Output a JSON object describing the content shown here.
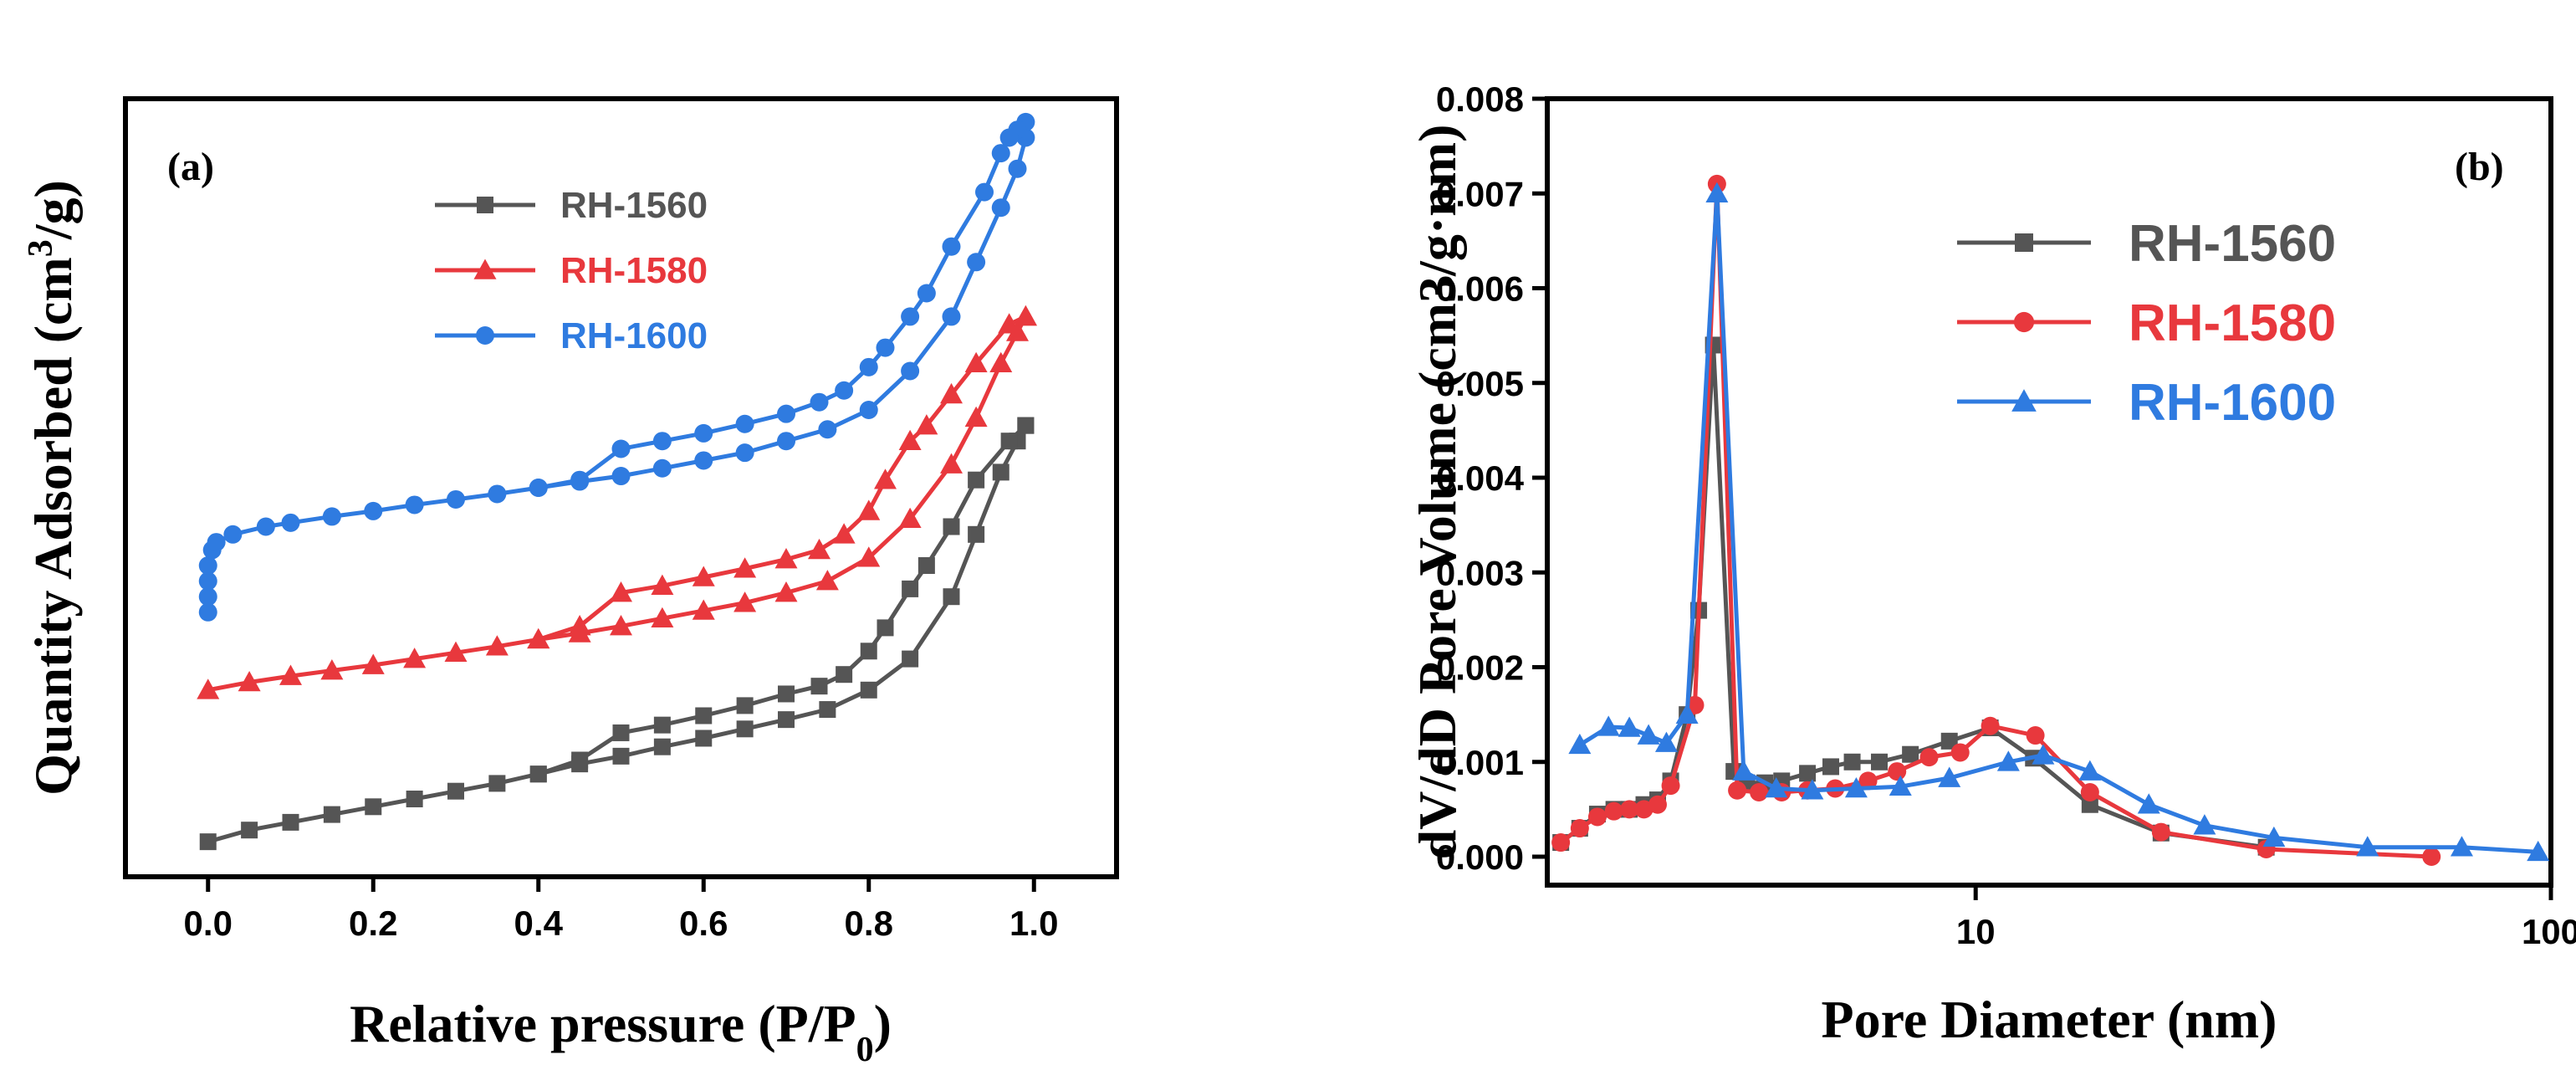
{
  "chart_data": [
    {
      "type": "line",
      "panel_label": "(a)",
      "xlabel": "Relative pressure (P/P",
      "xlabel_sub": "0",
      "xlabel_end": ")",
      "ylabel": "Quantity Adsorbed (cm",
      "ylabel_sup": "3",
      "ylabel_end": "/g)",
      "xlim": [
        -0.1,
        1.1
      ],
      "ylim": [
        0,
        1
      ],
      "xticks": [
        0.0,
        0.2,
        0.4,
        0.6,
        0.8,
        1.0
      ],
      "xtick_labels": [
        "0.0",
        "0.2",
        "0.4",
        "0.6",
        "0.8",
        "1.0"
      ],
      "yticks_shown": false,
      "legend_position": "top-center",
      "series": [
        {
          "name": "RH-1560",
          "color": "#555555",
          "marker": "square",
          "adsorption": [
            [
              0.0,
              0.045
            ],
            [
              0.05,
              0.06
            ],
            [
              0.1,
              0.07
            ],
            [
              0.15,
              0.08
            ],
            [
              0.2,
              0.09
            ],
            [
              0.25,
              0.1
            ],
            [
              0.3,
              0.11
            ],
            [
              0.35,
              0.12
            ],
            [
              0.4,
              0.132
            ],
            [
              0.45,
              0.145
            ],
            [
              0.5,
              0.155
            ],
            [
              0.55,
              0.167
            ],
            [
              0.6,
              0.178
            ],
            [
              0.65,
              0.19
            ],
            [
              0.7,
              0.202
            ],
            [
              0.75,
              0.215
            ],
            [
              0.8,
              0.24
            ],
            [
              0.85,
              0.28
            ],
            [
              0.9,
              0.36
            ],
            [
              0.93,
              0.44
            ],
            [
              0.96,
              0.52
            ],
            [
              0.98,
              0.56
            ],
            [
              0.99,
              0.58
            ]
          ],
          "desorption": [
            [
              0.99,
              0.58
            ],
            [
              0.97,
              0.56
            ],
            [
              0.93,
              0.51
            ],
            [
              0.9,
              0.45
            ],
            [
              0.87,
              0.4
            ],
            [
              0.85,
              0.37
            ],
            [
              0.82,
              0.32
            ],
            [
              0.8,
              0.29
            ],
            [
              0.77,
              0.26
            ],
            [
              0.74,
              0.245
            ],
            [
              0.7,
              0.235
            ],
            [
              0.65,
              0.22
            ],
            [
              0.6,
              0.207
            ],
            [
              0.55,
              0.195
            ],
            [
              0.5,
              0.185
            ],
            [
              0.45,
              0.15
            ],
            [
              0.4,
              0.132
            ]
          ]
        },
        {
          "name": "RH-1580",
          "color": "#e8383d",
          "marker": "triangle",
          "adsorption": [
            [
              0.0,
              0.24
            ],
            [
              0.05,
              0.25
            ],
            [
              0.1,
              0.258
            ],
            [
              0.15,
              0.265
            ],
            [
              0.2,
              0.272
            ],
            [
              0.25,
              0.28
            ],
            [
              0.3,
              0.288
            ],
            [
              0.35,
              0.296
            ],
            [
              0.4,
              0.305
            ],
            [
              0.45,
              0.313
            ],
            [
              0.5,
              0.322
            ],
            [
              0.55,
              0.332
            ],
            [
              0.6,
              0.342
            ],
            [
              0.65,
              0.352
            ],
            [
              0.7,
              0.365
            ],
            [
              0.75,
              0.38
            ],
            [
              0.8,
              0.41
            ],
            [
              0.85,
              0.46
            ],
            [
              0.9,
              0.53
            ],
            [
              0.93,
              0.59
            ],
            [
              0.96,
              0.66
            ],
            [
              0.98,
              0.7
            ],
            [
              0.99,
              0.72
            ]
          ],
          "desorption": [
            [
              0.99,
              0.72
            ],
            [
              0.97,
              0.71
            ],
            [
              0.93,
              0.66
            ],
            [
              0.9,
              0.62
            ],
            [
              0.87,
              0.58
            ],
            [
              0.85,
              0.56
            ],
            [
              0.82,
              0.51
            ],
            [
              0.8,
              0.47
            ],
            [
              0.77,
              0.44
            ],
            [
              0.74,
              0.42
            ],
            [
              0.7,
              0.408
            ],
            [
              0.65,
              0.396
            ],
            [
              0.6,
              0.385
            ],
            [
              0.55,
              0.374
            ],
            [
              0.5,
              0.365
            ],
            [
              0.45,
              0.322
            ],
            [
              0.4,
              0.305
            ]
          ]
        },
        {
          "name": "RH-1600",
          "color": "#2f7be0",
          "marker": "circle",
          "adsorption": [
            [
              0.0,
              0.34
            ],
            [
              0.0,
              0.36
            ],
            [
              0.0,
              0.38
            ],
            [
              0.0,
              0.4
            ],
            [
              0.005,
              0.42
            ],
            [
              0.01,
              0.43
            ],
            [
              0.03,
              0.44
            ],
            [
              0.07,
              0.45
            ],
            [
              0.1,
              0.455
            ],
            [
              0.15,
              0.463
            ],
            [
              0.2,
              0.47
            ],
            [
              0.25,
              0.478
            ],
            [
              0.3,
              0.485
            ],
            [
              0.35,
              0.492
            ],
            [
              0.4,
              0.5
            ],
            [
              0.45,
              0.508
            ],
            [
              0.5,
              0.515
            ],
            [
              0.55,
              0.525
            ],
            [
              0.6,
              0.535
            ],
            [
              0.65,
              0.545
            ],
            [
              0.7,
              0.56
            ],
            [
              0.75,
              0.575
            ],
            [
              0.8,
              0.6
            ],
            [
              0.85,
              0.65
            ],
            [
              0.9,
              0.72
            ],
            [
              0.93,
              0.79
            ],
            [
              0.96,
              0.86
            ],
            [
              0.98,
              0.91
            ],
            [
              0.99,
              0.95
            ]
          ],
          "desorption": [
            [
              0.99,
              0.97
            ],
            [
              0.98,
              0.96
            ],
            [
              0.97,
              0.95
            ],
            [
              0.96,
              0.93
            ],
            [
              0.94,
              0.88
            ],
            [
              0.9,
              0.81
            ],
            [
              0.87,
              0.75
            ],
            [
              0.85,
              0.72
            ],
            [
              0.82,
              0.68
            ],
            [
              0.8,
              0.655
            ],
            [
              0.77,
              0.625
            ],
            [
              0.74,
              0.61
            ],
            [
              0.7,
              0.595
            ],
            [
              0.65,
              0.582
            ],
            [
              0.6,
              0.57
            ],
            [
              0.55,
              0.56
            ],
            [
              0.5,
              0.55
            ],
            [
              0.45,
              0.51
            ],
            [
              0.4,
              0.5
            ]
          ]
        }
      ]
    },
    {
      "type": "line",
      "panel_label": "(b)",
      "xlabel": "Pore Diameter (nm)",
      "ylabel": "dV/dD Pore Volume (cm3/g·nm)",
      "xscale": "log",
      "xlim": [
        1.8,
        100
      ],
      "ylim": [
        -0.0003,
        0.008
      ],
      "xticks": [
        10,
        100
      ],
      "xtick_labels": [
        "10",
        "100"
      ],
      "yticks": [
        0.0,
        0.001,
        0.002,
        0.003,
        0.004,
        0.005,
        0.006,
        0.007,
        0.008
      ],
      "ytick_labels": [
        "0.000",
        "0.001",
        "0.002",
        "0.003",
        "0.004",
        "0.005",
        "0.006",
        "0.007",
        "0.008"
      ],
      "legend_position": "top-right",
      "series": [
        {
          "name": "RH-1560",
          "color": "#555555",
          "marker": "square",
          "points": [
            [
              1.9,
              0.00015
            ],
            [
              2.05,
              0.0003
            ],
            [
              2.2,
              0.00045
            ],
            [
              2.35,
              0.0005
            ],
            [
              2.5,
              0.0005
            ],
            [
              2.65,
              0.00055
            ],
            [
              2.8,
              0.0006
            ],
            [
              2.95,
              0.0008
            ],
            [
              3.15,
              0.0015
            ],
            [
              3.3,
              0.0026
            ],
            [
              3.5,
              0.0054
            ],
            [
              3.8,
              0.0009
            ],
            [
              4.0,
              0.00078
            ],
            [
              4.3,
              0.00078
            ],
            [
              4.6,
              0.0008
            ],
            [
              5.1,
              0.00088
            ],
            [
              5.6,
              0.00095
            ],
            [
              6.1,
              0.001
            ],
            [
              6.8,
              0.001
            ],
            [
              7.7,
              0.00108
            ],
            [
              9.0,
              0.00122
            ],
            [
              10.6,
              0.00136
            ],
            [
              12.6,
              0.00104
            ],
            [
              15.8,
              0.00055
            ],
            [
              21.0,
              0.00025
            ],
            [
              32.0,
              0.0001
            ]
          ]
        },
        {
          "name": "RH-1580",
          "color": "#e8383d",
          "marker": "circle",
          "points": [
            [
              1.9,
              0.00015
            ],
            [
              2.05,
              0.0003
            ],
            [
              2.2,
              0.00042
            ],
            [
              2.35,
              0.00048
            ],
            [
              2.5,
              0.0005
            ],
            [
              2.65,
              0.0005
            ],
            [
              2.8,
              0.00055
            ],
            [
              2.95,
              0.00075
            ],
            [
              3.25,
              0.0016
            ],
            [
              3.55,
              0.0071
            ],
            [
              3.85,
              0.0007
            ],
            [
              4.2,
              0.00068
            ],
            [
              4.6,
              0.00068
            ],
            [
              5.1,
              0.0007
            ],
            [
              5.7,
              0.00072
            ],
            [
              6.5,
              0.0008
            ],
            [
              7.3,
              0.0009
            ],
            [
              8.3,
              0.00105
            ],
            [
              9.4,
              0.0011
            ],
            [
              10.6,
              0.00138
            ],
            [
              12.7,
              0.00128
            ],
            [
              15.8,
              0.00068
            ],
            [
              21.0,
              0.00026
            ],
            [
              32.0,
              8e-05
            ],
            [
              62.0,
              0.0
            ]
          ]
        },
        {
          "name": "RH-1600",
          "color": "#2f7be0",
          "marker": "triangle",
          "points": [
            [
              2.05,
              0.00118
            ],
            [
              2.3,
              0.00137
            ],
            [
              2.5,
              0.00136
            ],
            [
              2.7,
              0.00128
            ],
            [
              2.9,
              0.0012
            ],
            [
              3.15,
              0.0015
            ],
            [
              3.55,
              0.007
            ],
            [
              3.95,
              0.0009
            ],
            [
              4.5,
              0.00072
            ],
            [
              5.2,
              0.0007
            ],
            [
              6.2,
              0.00072
            ],
            [
              7.4,
              0.00074
            ],
            [
              9.0,
              0.00083
            ],
            [
              11.4,
              0.001
            ],
            [
              13.1,
              0.00107
            ],
            [
              15.8,
              0.0009
            ],
            [
              20.0,
              0.00055
            ],
            [
              25.0,
              0.00033
            ],
            [
              33.0,
              0.0002
            ],
            [
              48.0,
              0.0001
            ],
            [
              70.0,
              0.0001
            ],
            [
              95.0,
              5e-05
            ]
          ]
        }
      ]
    }
  ]
}
